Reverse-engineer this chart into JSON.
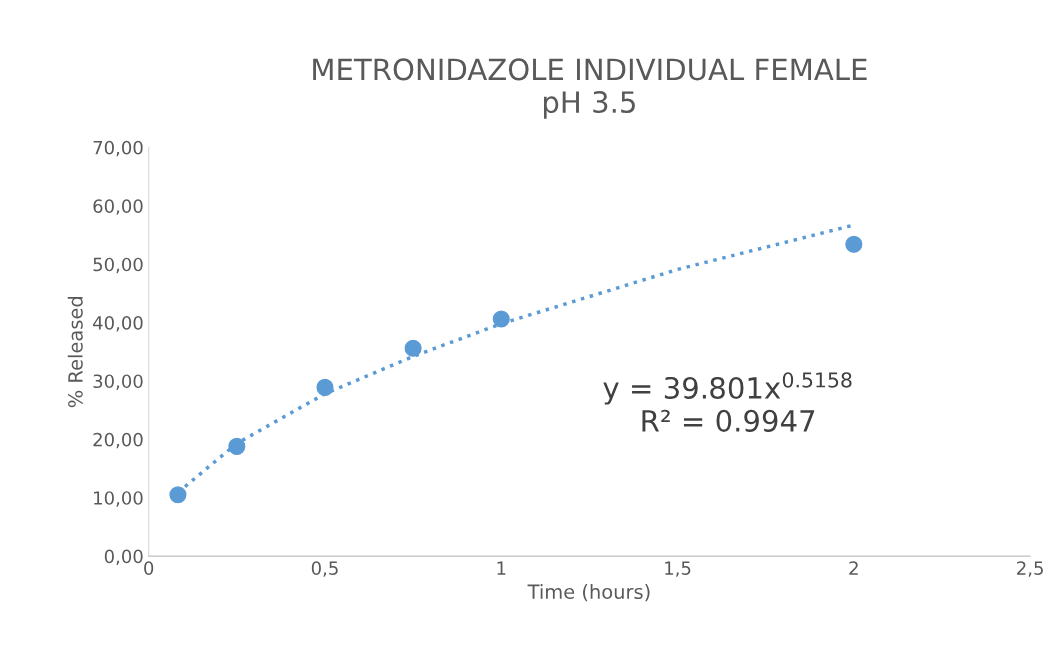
{
  "chart_data": {
    "type": "scatter",
    "title": "METRONIDAZOLE INDIVIDUAL FEMALE\npH 3.5",
    "xlabel": "Time (hours)",
    "ylabel": "% Released",
    "series": [
      {
        "color": "#5b9bd5",
        "marker": "circle",
        "x": [
          0.083,
          0.25,
          0.5,
          0.75,
          1,
          2
        ],
        "values": [
          10.5,
          18.8,
          28.9,
          35.6,
          40.6,
          53.4
        ]
      },
      {
        "type": "line",
        "color": "#5b9bd5",
        "line_style": "dotted",
        "marker": "none",
        "x": [
          0.083,
          0.25,
          0.5,
          0.75,
          1,
          1.5,
          2
        ],
        "values": [
          10.9,
          19.3,
          27.8,
          34.2,
          39.8,
          49.1,
          56.7
        ]
      }
    ],
    "annotations": [
      "y = 39.801x$^{0.5158}$\nR² = 0.9947"
    ],
    "xlim": [
      0,
      2.5
    ],
    "xticks": [
      0,
      {
        "value": 0.5,
        "label": "0,5"
      },
      1,
      {
        "value": 1.5,
        "label": "1,5"
      },
      2,
      {
        "value": 2.5,
        "label": "2,5"
      }
    ],
    "ylim": [
      0,
      70
    ],
    "yticks": [
      {
        "value": 0,
        "label": "0,00"
      },
      {
        "value": 10,
        "label": "10,00"
      },
      {
        "value": 20,
        "label": "20,00"
      },
      {
        "value": 30,
        "label": "30,00"
      },
      {
        "value": 40,
        "label": "40,00"
      },
      {
        "value": 50,
        "label": "50,00"
      },
      {
        "value": 60,
        "label": "60,00"
      },
      {
        "value": 70,
        "label": "70,00"
      }
    ],
    "grid": false,
    "legend": false
  }
}
